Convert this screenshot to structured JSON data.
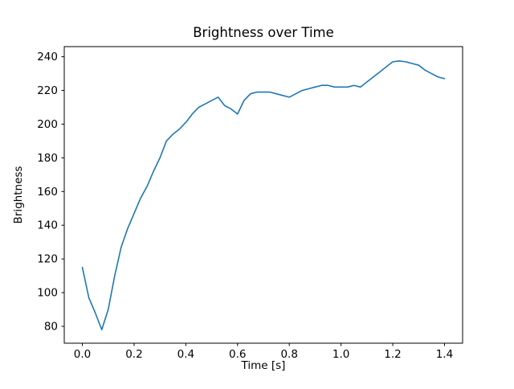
{
  "chart_data": {
    "type": "line",
    "title": "Brightness over Time",
    "xlabel": "Time [s]",
    "ylabel": "Brightness",
    "line_color": "#1f77b4",
    "grid": false,
    "legend": null,
    "xlim": [
      -0.07,
      1.47
    ],
    "ylim": [
      70,
      246
    ],
    "xticks": [
      0.0,
      0.2,
      0.4,
      0.6,
      0.8,
      1.0,
      1.2,
      1.4
    ],
    "xtick_labels": [
      "0.0",
      "0.2",
      "0.4",
      "0.6",
      "0.8",
      "1.0",
      "1.2",
      "1.4"
    ],
    "yticks": [
      80,
      100,
      120,
      140,
      160,
      180,
      200,
      220,
      240
    ],
    "ytick_labels": [
      "80",
      "100",
      "120",
      "140",
      "160",
      "180",
      "200",
      "220",
      "240"
    ],
    "x": [
      0.0,
      0.025,
      0.05,
      0.075,
      0.1,
      0.125,
      0.15,
      0.175,
      0.2,
      0.225,
      0.25,
      0.275,
      0.3,
      0.325,
      0.35,
      0.375,
      0.4,
      0.425,
      0.45,
      0.475,
      0.5,
      0.525,
      0.55,
      0.575,
      0.6,
      0.625,
      0.65,
      0.675,
      0.7,
      0.725,
      0.75,
      0.775,
      0.8,
      0.825,
      0.85,
      0.875,
      0.9,
      0.925,
      0.95,
      0.975,
      1.0,
      1.025,
      1.05,
      1.075,
      1.1,
      1.125,
      1.15,
      1.175,
      1.2,
      1.225,
      1.25,
      1.275,
      1.3,
      1.325,
      1.35,
      1.375,
      1.4
    ],
    "y": [
      115,
      97,
      88,
      78,
      90,
      110,
      127,
      138,
      147,
      156,
      163,
      172,
      180,
      190,
      194,
      197,
      201,
      206,
      210,
      212,
      214,
      216,
      211,
      209,
      206,
      214,
      218,
      219,
      219,
      219,
      218,
      217,
      216,
      218,
      220,
      221,
      222,
      223,
      223,
      222,
      222,
      222,
      223,
      222,
      225,
      228,
      231,
      234,
      237,
      237.5,
      237,
      236,
      235,
      232,
      230,
      228,
      227
    ]
  }
}
